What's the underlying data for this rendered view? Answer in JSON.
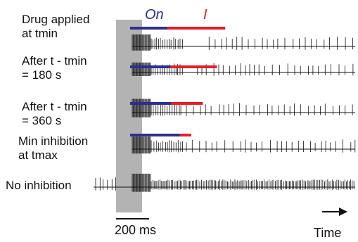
{
  "labels": {
    "on": "On",
    "i": "I",
    "scale_bar": "200 ms",
    "time": "Time"
  },
  "rows": [
    {
      "label_lines": [
        "Drug applied",
        "at tmin"
      ],
      "on_ms": 225,
      "i_ms": 350
    },
    {
      "label_lines": [
        "After t - tmin",
        "= 180 s"
      ],
      "on_ms": 245,
      "i_ms": 280
    },
    {
      "label_lines": [
        "After t - tmin",
        "= 360 s"
      ],
      "on_ms": 250,
      "i_ms": 190
    },
    {
      "label_lines": [
        "Min inhibition",
        "at tmax"
      ],
      "on_ms": 300,
      "i_ms": 70
    },
    {
      "label_lines": [
        "No inhibition"
      ],
      "on_ms": null,
      "i_ms": null
    }
  ],
  "colors": {
    "on_bar": "#2e2f8e",
    "i_bar": "#e3202a",
    "stim_window": "#b3b3b3",
    "trace": "#111111"
  }
}
